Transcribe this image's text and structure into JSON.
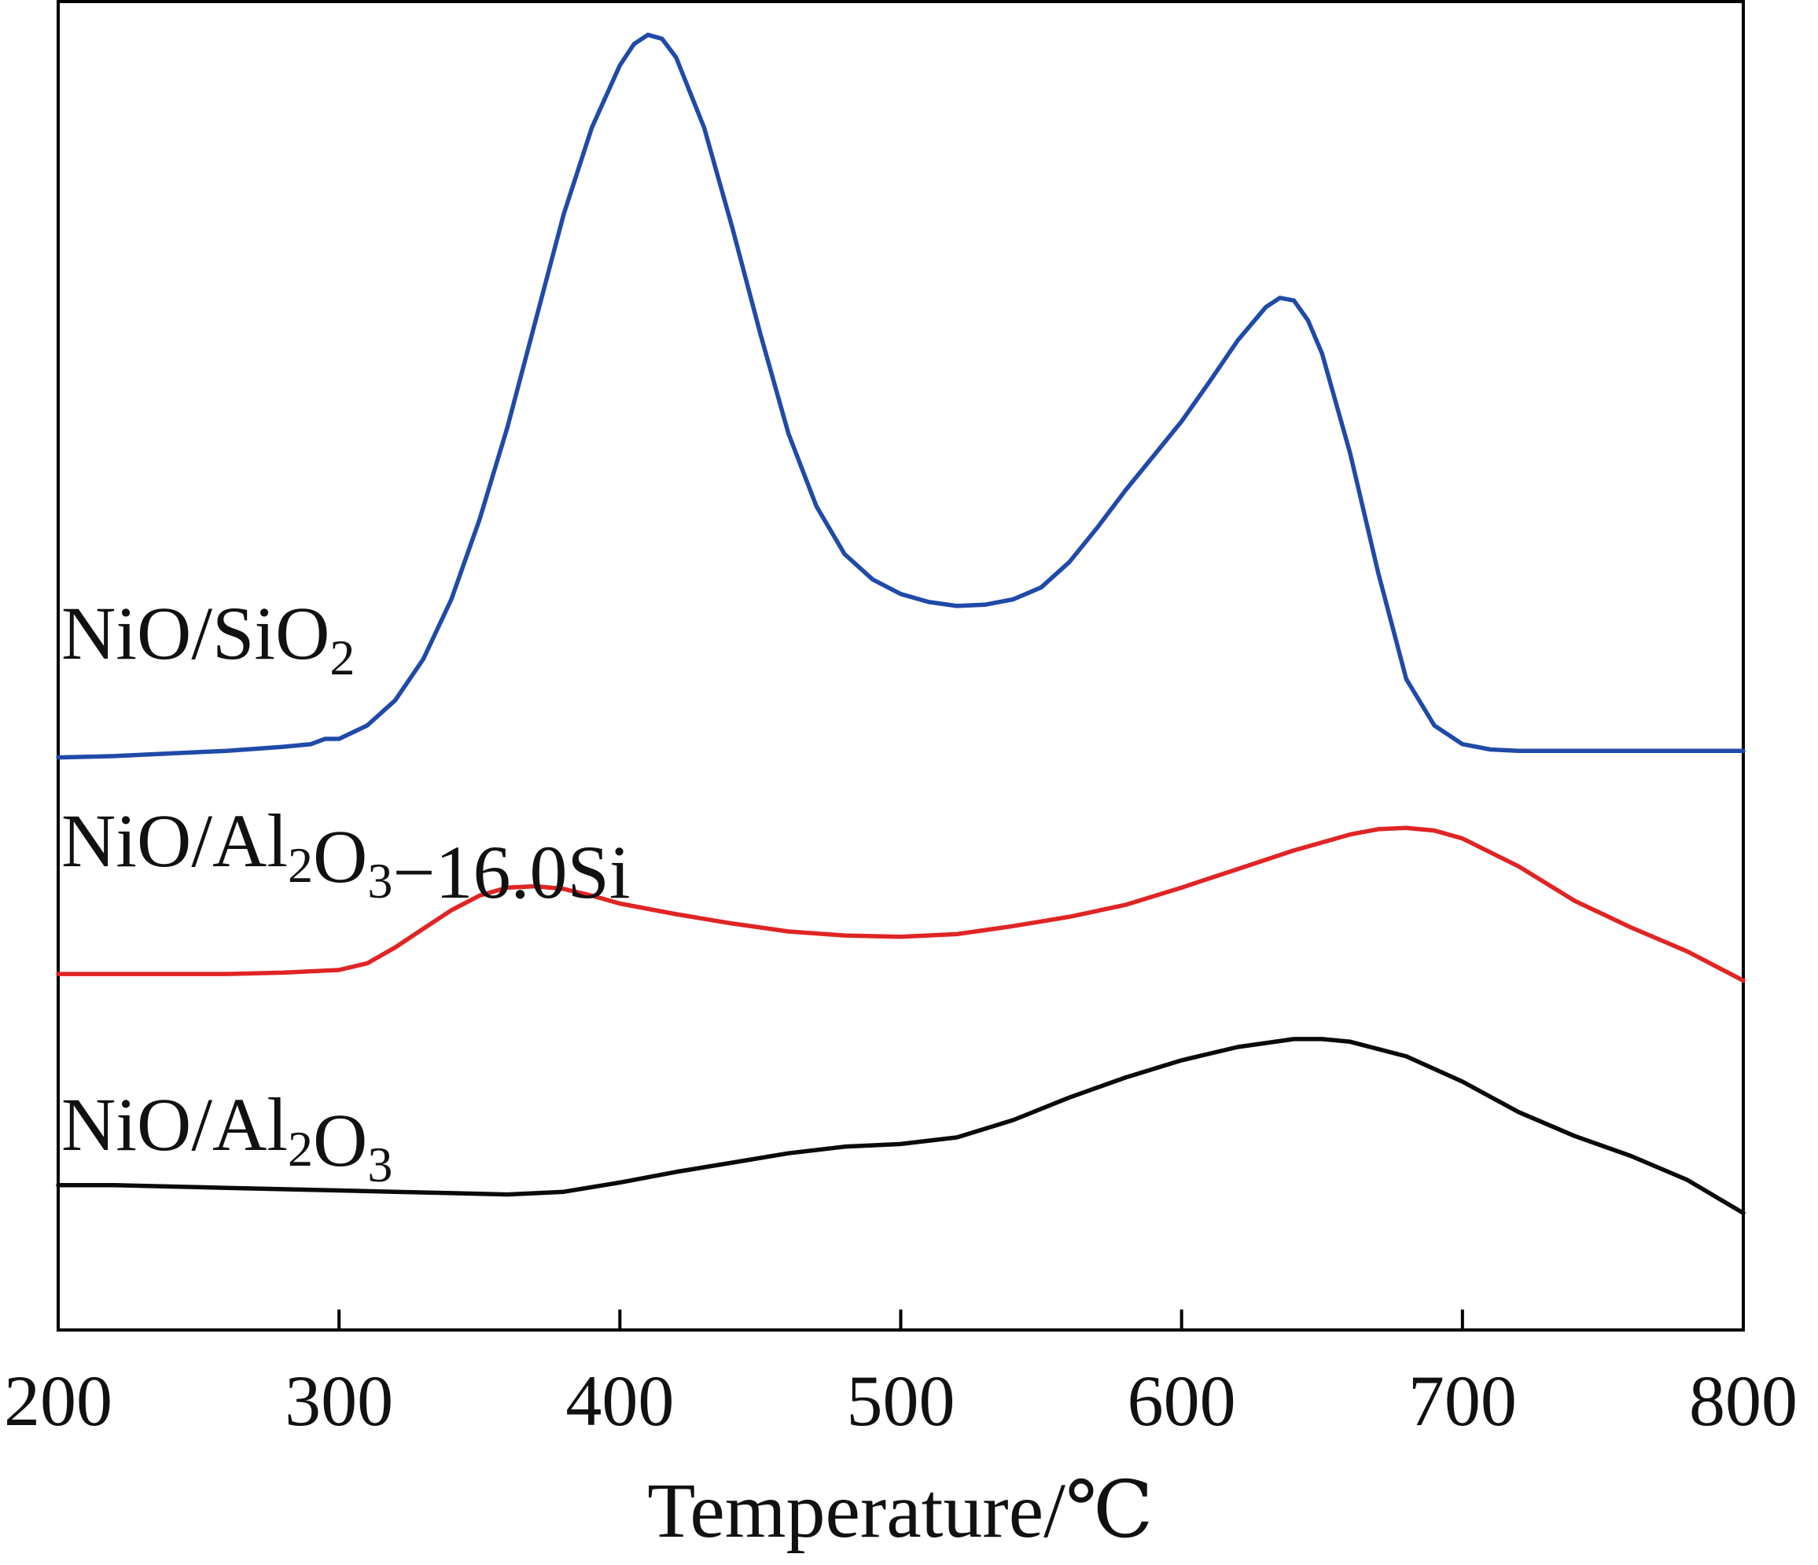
{
  "chart_data": {
    "type": "line",
    "title": "",
    "xlabel": "Temperature/℃",
    "ylabel": "",
    "xlim": [
      200,
      800
    ],
    "ylim": [
      0,
      1.0
    ],
    "xticks": [
      200,
      300,
      400,
      500,
      600,
      700,
      800
    ],
    "y_ticks_labeled": false,
    "grid": false,
    "legend": "inline-left",
    "series": [
      {
        "name": "NiO/SiO2",
        "label_main": "NiO/SiO",
        "label_sub1": "2",
        "label_mid": "",
        "label_sub2": "",
        "label_tail": "",
        "color": "#1f4aa8",
        "x": [
          200,
          220,
          240,
          260,
          280,
          290,
          295,
          300,
          310,
          320,
          330,
          340,
          350,
          360,
          370,
          380,
          390,
          400,
          405,
          410,
          415,
          420,
          430,
          440,
          450,
          460,
          470,
          480,
          490,
          500,
          510,
          520,
          530,
          540,
          550,
          560,
          570,
          580,
          590,
          600,
          610,
          620,
          630,
          635,
          640,
          645,
          650,
          660,
          670,
          680,
          690,
          700,
          710,
          720,
          730,
          740,
          760,
          780,
          800
        ],
        "y": [
          0.431,
          0.432,
          0.434,
          0.436,
          0.439,
          0.441,
          0.445,
          0.445,
          0.455,
          0.474,
          0.505,
          0.55,
          0.61,
          0.68,
          0.76,
          0.84,
          0.905,
          0.952,
          0.968,
          0.975,
          0.972,
          0.958,
          0.905,
          0.83,
          0.75,
          0.675,
          0.62,
          0.584,
          0.565,
          0.554,
          0.548,
          0.545,
          0.546,
          0.55,
          0.559,
          0.578,
          0.604,
          0.632,
          0.658,
          0.684,
          0.714,
          0.745,
          0.77,
          0.777,
          0.775,
          0.76,
          0.735,
          0.66,
          0.57,
          0.49,
          0.455,
          0.441,
          0.437,
          0.436,
          0.436,
          0.436,
          0.436,
          0.436,
          0.436
        ]
      },
      {
        "name": "NiO/Al2O3-16.0Si",
        "label_main": "NiO/Al",
        "label_sub1": "2",
        "label_mid": "O",
        "label_sub2": "3",
        "label_tail": "−16.0Si",
        "color": "#e02424",
        "x": [
          200,
          220,
          240,
          260,
          280,
          300,
          310,
          320,
          330,
          340,
          350,
          360,
          370,
          380,
          390,
          400,
          420,
          440,
          460,
          480,
          500,
          520,
          540,
          560,
          580,
          600,
          620,
          640,
          660,
          670,
          680,
          690,
          700,
          720,
          740,
          760,
          780,
          800
        ],
        "y": [
          0.268,
          0.268,
          0.268,
          0.268,
          0.269,
          0.271,
          0.276,
          0.288,
          0.302,
          0.316,
          0.327,
          0.333,
          0.334,
          0.332,
          0.327,
          0.321,
          0.313,
          0.306,
          0.3,
          0.297,
          0.296,
          0.298,
          0.304,
          0.311,
          0.32,
          0.333,
          0.347,
          0.361,
          0.373,
          0.377,
          0.378,
          0.376,
          0.37,
          0.349,
          0.323,
          0.303,
          0.285,
          0.263
        ]
      },
      {
        "name": "NiO/Al2O3",
        "label_main": "NiO/Al",
        "label_sub1": "2",
        "label_mid": "O",
        "label_sub2": "3",
        "label_tail": "",
        "color": "#0a0a0a",
        "x": [
          200,
          220,
          240,
          260,
          280,
          300,
          320,
          340,
          360,
          380,
          400,
          420,
          440,
          460,
          480,
          500,
          520,
          540,
          560,
          580,
          600,
          620,
          640,
          650,
          660,
          680,
          700,
          720,
          740,
          760,
          780,
          800
        ],
        "y": [
          0.109,
          0.109,
          0.108,
          0.107,
          0.106,
          0.105,
          0.104,
          0.103,
          0.102,
          0.104,
          0.111,
          0.119,
          0.126,
          0.133,
          0.138,
          0.14,
          0.145,
          0.158,
          0.175,
          0.19,
          0.203,
          0.213,
          0.219,
          0.219,
          0.217,
          0.206,
          0.187,
          0.164,
          0.146,
          0.131,
          0.113,
          0.088
        ]
      }
    ]
  }
}
